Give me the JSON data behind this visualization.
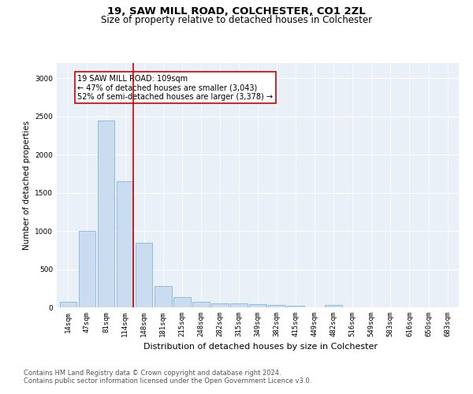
{
  "title1": "19, SAW MILL ROAD, COLCHESTER, CO1 2ZL",
  "title2": "Size of property relative to detached houses in Colchester",
  "xlabel": "Distribution of detached houses by size in Colchester",
  "ylabel": "Number of detached properties",
  "bar_color": "#c9dcf0",
  "bar_edge_color": "#8ab4d8",
  "background_color": "#eaf0f8",
  "vline_color": "#cc0000",
  "vline_x_idx": 3,
  "annotation_text": "19 SAW MILL ROAD: 109sqm\n← 47% of detached houses are smaller (3,043)\n52% of semi-detached houses are larger (3,378) →",
  "annotation_box_color": "#cc0000",
  "categories": [
    "14sqm",
    "47sqm",
    "81sqm",
    "114sqm",
    "148sqm",
    "181sqm",
    "215sqm",
    "248sqm",
    "282sqm",
    "315sqm",
    "349sqm",
    "382sqm",
    "415sqm",
    "449sqm",
    "482sqm",
    "516sqm",
    "549sqm",
    "583sqm",
    "616sqm",
    "650sqm",
    "683sqm"
  ],
  "values": [
    75,
    1000,
    2450,
    1650,
    850,
    280,
    130,
    70,
    50,
    50,
    40,
    30,
    20,
    0,
    30,
    0,
    0,
    0,
    0,
    0,
    0
  ],
  "ylim": [
    0,
    3200
  ],
  "yticks": [
    0,
    500,
    1000,
    1500,
    2000,
    2500,
    3000
  ],
  "footer1": "Contains HM Land Registry data © Crown copyright and database right 2024.",
  "footer2": "Contains public sector information licensed under the Open Government Licence v3.0.",
  "title_fontsize": 9.5,
  "subtitle_fontsize": 8.5,
  "tick_fontsize": 6.5,
  "ylabel_fontsize": 7.5,
  "xlabel_fontsize": 8,
  "annotation_fontsize": 7,
  "footer_fontsize": 6
}
